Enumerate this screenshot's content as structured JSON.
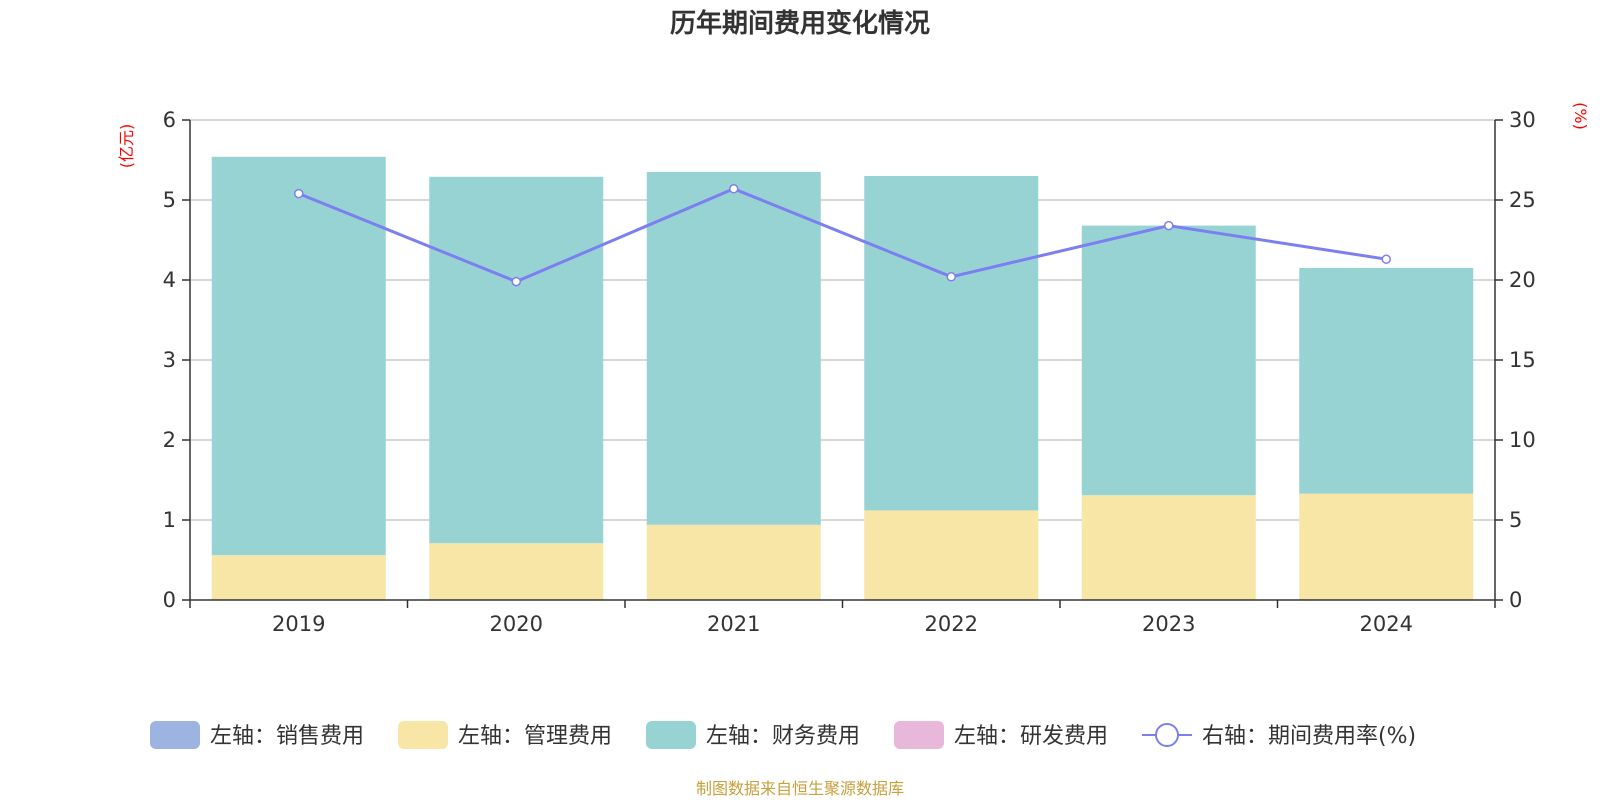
{
  "chart_data": {
    "type": "bar",
    "title": "历年期间费用变化情况",
    "categories": [
      "2019",
      "2020",
      "2021",
      "2022",
      "2023",
      "2024"
    ],
    "left_axis": {
      "unit": "(亿元)",
      "ylim": [
        0,
        6
      ],
      "ticks": [
        "0",
        "1",
        "2",
        "3",
        "4",
        "5",
        "6"
      ]
    },
    "right_axis": {
      "unit": "(%)",
      "ylim": [
        0,
        30
      ],
      "ticks": [
        "0",
        "5",
        "10",
        "15",
        "20",
        "25",
        "30"
      ]
    },
    "stacked": true,
    "series": [
      {
        "name": "左轴：销售费用",
        "type": "bar",
        "axis": "left",
        "color": "#9db4e0",
        "values": [
          0,
          0,
          0,
          0,
          0,
          0
        ]
      },
      {
        "name": "左轴：管理费用",
        "type": "bar",
        "axis": "left",
        "color": "#f7e6a6",
        "values": [
          0.56,
          0.71,
          0.94,
          1.12,
          1.31,
          1.33
        ]
      },
      {
        "name": "左轴：财务费用",
        "type": "bar",
        "axis": "left",
        "color": "#98d3d4",
        "values": [
          4.98,
          4.58,
          4.41,
          4.18,
          3.37,
          2.82
        ]
      },
      {
        "name": "左轴：研发费用",
        "type": "bar",
        "axis": "left",
        "color": "#e7b8d9",
        "values": [
          0,
          0,
          0,
          0,
          0,
          0
        ]
      },
      {
        "name": "右轴：期间费用率(%)",
        "type": "line",
        "axis": "right",
        "color": "#7b7ff0",
        "values": [
          25.4,
          19.9,
          25.7,
          20.2,
          23.4,
          21.3
        ]
      }
    ],
    "grid": true,
    "legend_position": "bottom"
  },
  "source": "制图数据来自恒生聚源数据库"
}
